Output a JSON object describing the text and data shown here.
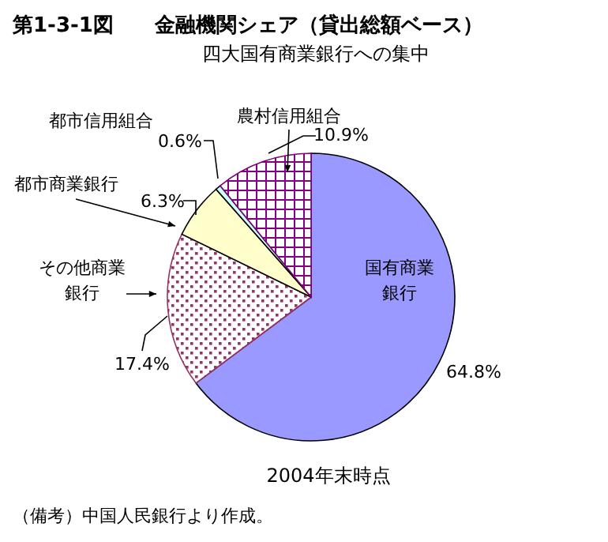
{
  "chart_data": {
    "type": "pie",
    "title": "第1-3-1図　　金融機関シェア（貸出総額ベース）",
    "subtitle": "四大国有商業銀行への集中",
    "categories": [
      "国有商業銀行",
      "その他商業銀行",
      "都市商業銀行",
      "都市信用組合",
      "農村信用組合"
    ],
    "values": [
      64.8,
      17.4,
      6.3,
      0.6,
      10.9
    ],
    "value_labels": [
      "64.8%",
      "17.4%",
      "6.3%",
      "0.6%",
      "10.9%"
    ],
    "colors": [
      "#9999ff",
      "#993366",
      "#ffffcc",
      "#ccffff",
      "#800080"
    ],
    "annotations": [
      "2004年末時点",
      "（備考）中国人民銀行より作成。"
    ],
    "legend": false
  }
}
